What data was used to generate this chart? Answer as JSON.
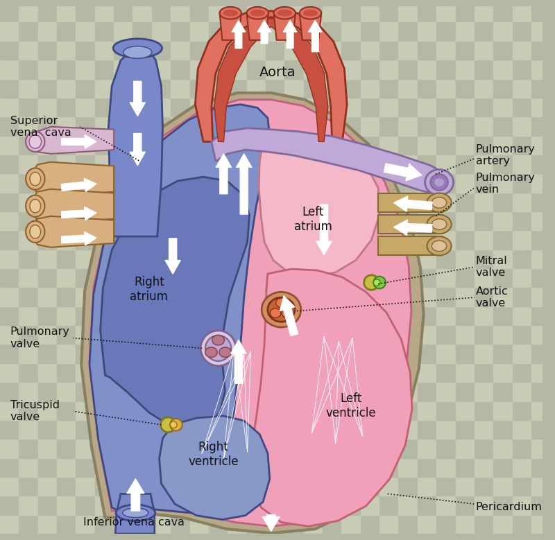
{
  "bg_light": "#c8ccb4",
  "bg_dark": "#b4b8a4",
  "checker_size": 28,
  "heart_outer_color": "#b8a888",
  "heart_outer_ec": "#888060",
  "heart_fill": "#f0a0b8",
  "heart_ec": "#c06080",
  "right_body_fill": "#8090c8",
  "right_body_ec": "#404880",
  "right_atrium_fill": "#6878b8",
  "right_atrium_ec": "#404878",
  "right_vent_fill": "#8898c8",
  "right_vent_ec": "#404880",
  "aorta_fill": "#e07060",
  "aorta_ec": "#903020",
  "aorta_inner": "#c85040",
  "pulm_art_fill": "#c0a8d8",
  "pulm_art_ec": "#806898",
  "pulm_art_tube": "#9878b8",
  "svc_fill": "#7888c8",
  "svc_ec": "#404880",
  "ivc_fill": "#7888c8",
  "ivc_ec": "#404880",
  "pv_fill": "#c8a868",
  "pv_ec": "#806838",
  "left_atrium_fill": "#f4b8c8",
  "left_atrium_ec": "#c07888",
  "left_vent_fill": "#f0a0b8",
  "left_vent_ec": "#c06070",
  "pericardium_ec": "#909070",
  "valve_ring": "#d0c090",
  "tricusp_yellow": "#d8c830",
  "tricusp_orange": "#e09040",
  "mitral_yellow": "#d8c830",
  "mitral_green": "#80c840",
  "pulm_valve_fill": "#c0a8d0",
  "pulm_valve_cusp": "#b87080",
  "aortic_valve_fill": "#d09060",
  "aortic_valve_inner": "#c06830",
  "chord_color": "#ffffff",
  "arrow_fc": "#ffffff",
  "arrow_ec": "#e8e8e8",
  "label_color": "#111111",
  "dotted_color": "#111111",
  "labels": {
    "superior_vena_cava": "Superior\nvena  cava",
    "inferior_vena_cava": "Inferior vena cava",
    "aorta": "Aorta",
    "pulmonary_artery": "Pulmonary\nartery",
    "pulmonary_vein": "Pulmonary\nvein",
    "right_atrium": "Right\natrium",
    "left_atrium": "Left\natrium",
    "right_ventricle": "Right\nventricle",
    "left_ventricle": "Left\nventricle",
    "pulmonary_valve": "Pulmonary\nvalve",
    "tricuspid_valve": "Tricuspid\nvalve",
    "mitral_valve": "Mitral\nvalve",
    "aortic_valve": "Aortic\nvalve",
    "pericardium": "Pericardium"
  }
}
